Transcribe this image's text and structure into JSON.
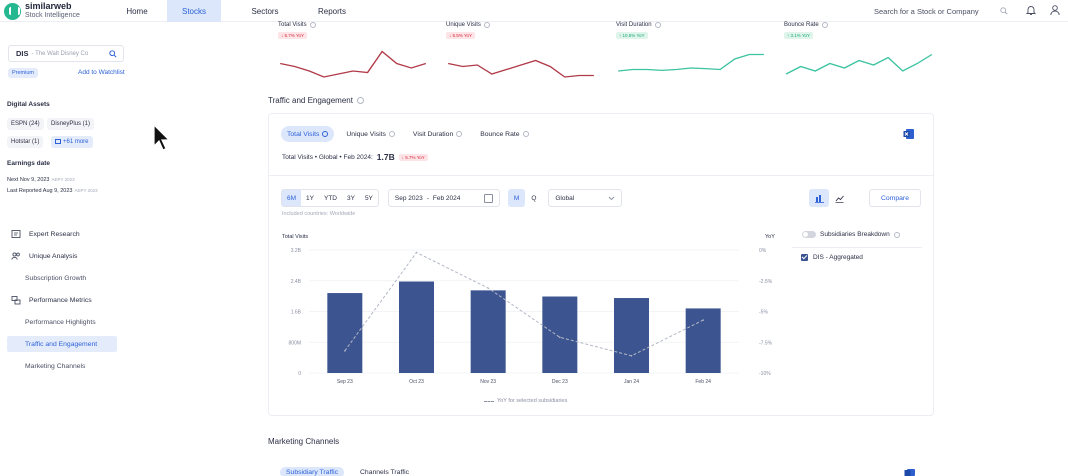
{
  "brand": {
    "name": "similarweb",
    "subtitle": "Stock Intelligence"
  },
  "nav": {
    "tabs": [
      {
        "label": "Home",
        "active": false
      },
      {
        "label": "Stocks",
        "active": true
      },
      {
        "label": "Sectors",
        "active": false
      },
      {
        "label": "Reports",
        "active": false
      }
    ],
    "search_placeholder": "Search for a Stock or Company"
  },
  "icons": {
    "search": "search-icon",
    "bell": "bell-icon",
    "user": "user-icon",
    "excel": "excel-icon",
    "calendar": "calendar-icon",
    "bar_chart": "bar-chart-icon",
    "line_chart": "line-chart-icon",
    "chevron": "chevron-down-icon"
  },
  "sidebar": {
    "ticker": {
      "symbol": "DIS",
      "name": "- The Walt Disney Co"
    },
    "premium_badge": "Premium",
    "watchlist_link": "Add to Watchlist",
    "digital_assets_title": "Digital Assets",
    "assets": [
      "ESPN (24)",
      "DisneyPlus (1)",
      "Hotstar (1)"
    ],
    "assets_more": "+61 more",
    "earnings_title": "Earnings date",
    "earnings": [
      {
        "text": "Next Nov 9, 2023",
        "tag": "AEPY 2023"
      },
      {
        "text": "Last Reported Aug 9, 2023",
        "tag": "AEPY 2023"
      }
    ],
    "menu": [
      {
        "label": "Expert Research",
        "type": "section"
      },
      {
        "label": "Unique Analysis",
        "type": "section"
      },
      {
        "label": "Subscription Growth",
        "type": "sub"
      },
      {
        "label": "Performance Metrics",
        "type": "section"
      },
      {
        "label": "Performance Highlights",
        "type": "sub"
      },
      {
        "label": "Traffic and Engagement",
        "type": "sub",
        "active": true
      },
      {
        "label": "Marketing Channels",
        "type": "sub"
      }
    ]
  },
  "metrics": [
    {
      "title": "Total Visits",
      "yoy": "5.7% YoY",
      "direction": "down",
      "color": "#b03a48",
      "spark": [
        0.55,
        0.45,
        0.3,
        0.1,
        0.2,
        0.3,
        0.25,
        0.95,
        0.55,
        0.4,
        0.55
      ]
    },
    {
      "title": "Unique Visits",
      "yoy": "5.5% YoY",
      "direction": "down",
      "color": "#b03a48",
      "spark": [
        0.55,
        0.45,
        0.5,
        0.2,
        0.35,
        0.5,
        0.65,
        0.45,
        0.1,
        0.15,
        0.15
      ]
    },
    {
      "title": "Visit Duration",
      "yoy": "10.5% YoY",
      "direction": "up",
      "color": "#3cc3a0",
      "spark": [
        0.3,
        0.35,
        0.35,
        0.32,
        0.35,
        0.4,
        0.38,
        0.35,
        0.7,
        0.85,
        0.85
      ]
    },
    {
      "title": "Bounce Rate",
      "yoy": "3.1% YoY",
      "direction": "up",
      "color": "#3cc3a0",
      "spark": [
        0.2,
        0.45,
        0.3,
        0.55,
        0.4,
        0.65,
        0.5,
        0.75,
        0.3,
        0.55,
        0.85
      ]
    }
  ],
  "traffic": {
    "section_title": "Traffic and Engagement",
    "tabs": [
      {
        "label": "Total Visits",
        "active": true
      },
      {
        "label": "Unique Visits",
        "active": false
      },
      {
        "label": "Visit Duration",
        "active": false
      },
      {
        "label": "Bounce Rate",
        "active": false
      }
    ],
    "summary_label": "Total Visits • Global • Feb 2024:",
    "summary_value": "1.7B",
    "summary_yoy": "5.7% YoY",
    "periods": [
      "6M",
      "1Y",
      "YTD",
      "3Y",
      "5Y"
    ],
    "active_period": "6M",
    "date_from": "Sep 2023",
    "date_sep": "-",
    "date_to": "Feb 2024",
    "granularity": [
      "M",
      "Q"
    ],
    "active_granularity": "M",
    "geo": "Global",
    "compare_label": "Compare",
    "included_countries": "Included countries: Worldwide",
    "subsidiaries_toggle": "Subsidiaries Breakdown",
    "subsidiary_item": "DIS - Aggregated",
    "legend_note": "YoY for selected subsidiaries"
  },
  "chart_data": {
    "type": "bar",
    "title": "",
    "ylabel": "Total Visits",
    "y2label": "YoY",
    "categories": [
      "Sep 23",
      "Oct 23",
      "Nov 23",
      "Dec 23",
      "Jan 24",
      "Feb 24"
    ],
    "y_ticks": [
      "0",
      "800M",
      "1.6B",
      "2.4B",
      "3.2B"
    ],
    "y_tick_values": [
      0,
      0.8,
      1.6,
      2.4,
      3.2
    ],
    "y2_ticks": [
      "0%",
      "-2.5%",
      "-5%",
      "-7.5%",
      "-10%"
    ],
    "ylim": [
      0,
      3.2
    ],
    "y2lim": [
      -10,
      0
    ],
    "series": [
      {
        "name": "Total Visits",
        "unit": "B",
        "values": [
          2.08,
          2.38,
          2.15,
          1.99,
          1.95,
          1.68
        ],
        "color": "#3c548f"
      },
      {
        "name": "YoY for selected subsidiaries",
        "unit": "%",
        "values": [
          -8.2,
          -0.2,
          -3.1,
          -7.1,
          -8.6,
          -5.7
        ],
        "style": "dashed",
        "color": "#b4b8c6"
      }
    ],
    "grid": true
  },
  "marketing": {
    "section_title": "Marketing Channels",
    "tabs": [
      {
        "label": "Subsidiary Traffic",
        "active": true
      },
      {
        "label": "Channels Traffic",
        "active": false
      }
    ]
  }
}
